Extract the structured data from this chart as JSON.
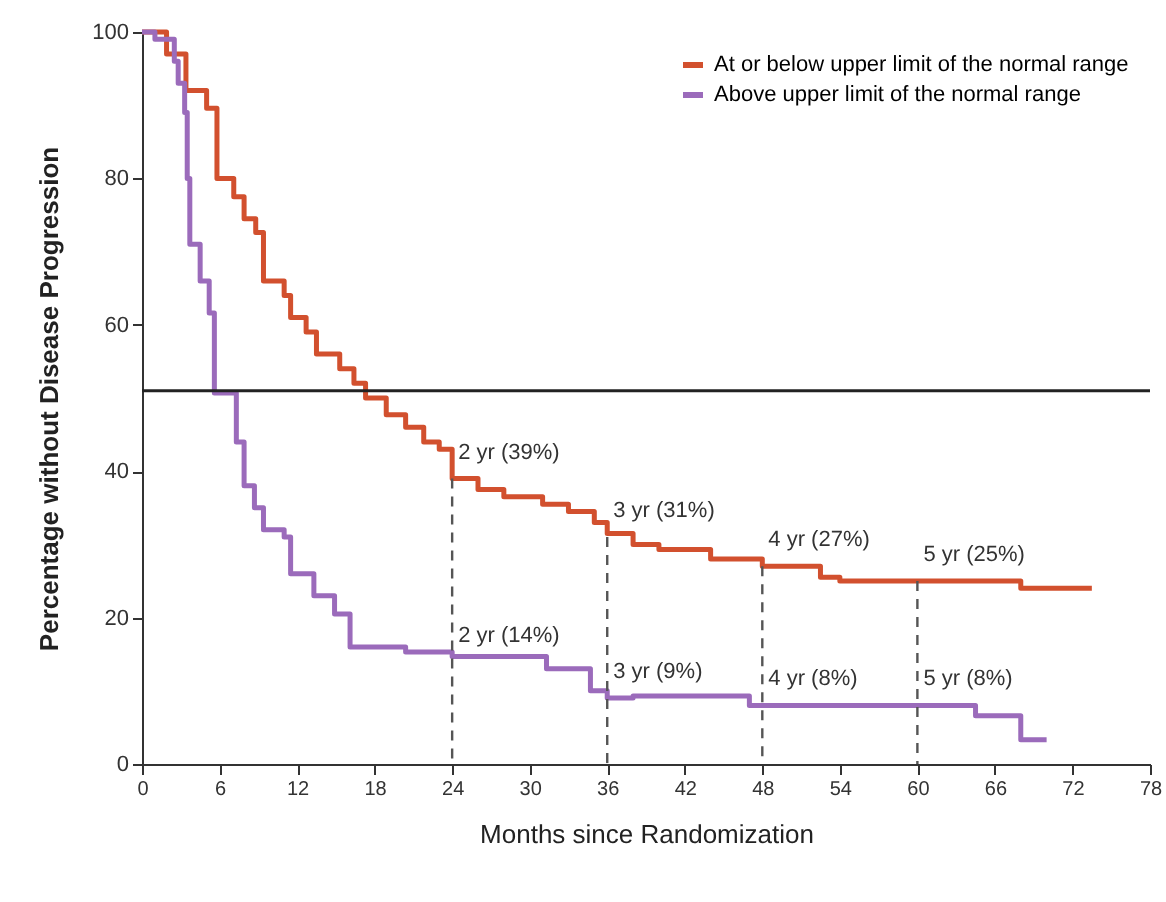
{
  "chart_data": {
    "type": "step",
    "xlabel": "Months since Randomization",
    "ylabel": "Percentage without Disease Progression",
    "xlim": [
      0,
      78
    ],
    "xticks": [
      0,
      6,
      12,
      18,
      24,
      30,
      36,
      42,
      48,
      54,
      60,
      66,
      72,
      78
    ],
    "ylim": [
      0,
      100
    ],
    "yticks": [
      0,
      20,
      40,
      60,
      80,
      100
    ],
    "grid": false,
    "legend": "top right",
    "line_style": "solid",
    "series": [
      {
        "name": "At or below upper limit of the normal range",
        "color": "#d2502e",
        "x": [
          0,
          1.9,
          3.4,
          5,
          5.8,
          7.1,
          7.9,
          8.8,
          9.4,
          11,
          11.5,
          12.7,
          13.5,
          15.3,
          16.4,
          17.3,
          18.9,
          20.4,
          21.8,
          23,
          24,
          26,
          28,
          31,
          33,
          35,
          36,
          38,
          40,
          44,
          48,
          52.5,
          54,
          60,
          68,
          73.5
        ],
        "values": [
          100,
          97,
          92,
          89.6,
          80,
          77.5,
          74.5,
          72.6,
          66,
          64,
          61,
          59,
          56,
          54,
          52,
          50,
          47.7,
          46,
          44,
          43,
          39,
          37.5,
          36.5,
          35.5,
          34.5,
          33,
          31.5,
          30,
          29.3,
          28,
          27,
          25.5,
          25,
          25,
          24,
          24
        ]
      },
      {
        "name": "Above upper limit of the normal range",
        "color": "#9b6bbb",
        "x": [
          0,
          1,
          2.5,
          2.8,
          3.3,
          3.5,
          3.7,
          4.5,
          5.2,
          5.6,
          7.3,
          7.9,
          8.7,
          9.4,
          11,
          11.5,
          13.3,
          14.9,
          16.1,
          20.4,
          24,
          31.3,
          34.7,
          36,
          38,
          47,
          64.5,
          68,
          70
        ],
        "values": [
          100,
          99,
          96,
          93,
          89,
          80,
          71,
          66,
          61.6,
          50.7,
          44,
          38,
          35,
          32,
          31,
          26,
          23,
          20.5,
          16,
          15.3,
          14.7,
          13,
          10,
          9,
          9.3,
          8,
          6.6,
          3.3,
          3.3
        ]
      }
    ],
    "ref_lines": [
      {
        "axis": "y",
        "value": 51,
        "color": "#222222",
        "line_style": "solid"
      }
    ],
    "annotations": [
      {
        "text": "2 yr (39%)",
        "x": 24,
        "y": 39
      },
      {
        "text": "3 yr (31%)",
        "x": 36,
        "y": 31
      },
      {
        "text": "4 yr (27%)",
        "x": 48,
        "y": 27
      },
      {
        "text": "5 yr (25%)",
        "x": 60,
        "y": 25
      },
      {
        "text": "2 yr (14%)",
        "x": 24,
        "y": 14
      },
      {
        "text": "3 yr (9%)",
        "x": 36,
        "y": 9
      },
      {
        "text": "4 yr (8%)",
        "x": 48,
        "y": 8
      },
      {
        "text": "5 yr (8%)",
        "x": 60,
        "y": 8
      }
    ]
  }
}
